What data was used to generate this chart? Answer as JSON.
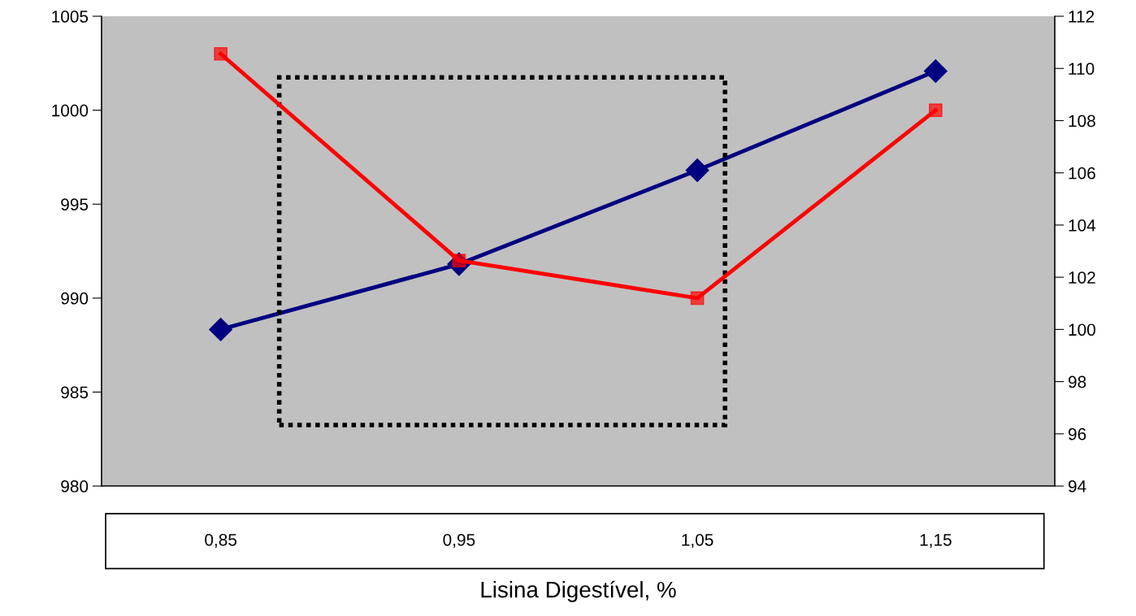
{
  "chart_data": {
    "type": "line",
    "xlabel": "Lisina Digestível, %",
    "categories": [
      "0,85",
      "0,95",
      "1,05",
      "1,15"
    ],
    "series": [
      {
        "color": "#ff0000",
        "values": [
          1003,
          992,
          990,
          1000
        ],
        "marker": "square"
      },
      {
        "color": "#000080",
        "values": [
          100,
          102.5,
          106.1,
          109.9
        ],
        "marker": "diamond",
        "axis": "y2"
      }
    ],
    "ylim": [
      980,
      1005
    ],
    "yticks": [
      980,
      985,
      990,
      995,
      1000,
      1005
    ],
    "y2lim": [
      94,
      112
    ],
    "y2ticks": [
      94,
      96,
      98,
      100,
      102,
      104,
      106,
      108,
      110,
      112
    ],
    "grid": false,
    "legend": false,
    "line_style": "solid"
  }
}
